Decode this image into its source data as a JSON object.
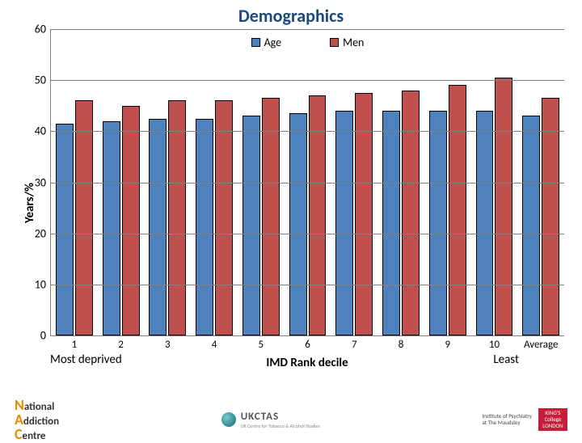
{
  "title": "Demographics",
  "ylabel": "Years/%",
  "xlabel": "IMD Rank decile",
  "sublabel_left": "Most deprived",
  "sublabel_right": "Least",
  "chart": {
    "type": "bar",
    "ylim": [
      0,
      60
    ],
    "ytick_step": 10,
    "yticks": [
      0,
      10,
      20,
      30,
      40,
      50,
      60
    ],
    "grid_color": "#808080",
    "background_color": "#ffffff",
    "categories": [
      "1",
      "2",
      "3",
      "4",
      "5",
      "6",
      "7",
      "8",
      "9",
      "10",
      "Average"
    ],
    "series": [
      {
        "name": "Age",
        "color": "#4f81bd",
        "values": [
          41.5,
          42,
          42.5,
          42.5,
          43,
          43.5,
          44,
          44,
          44,
          44,
          43
        ]
      },
      {
        "name": "Men",
        "color": "#c0504d",
        "values": [
          46,
          45,
          46,
          46,
          46.5,
          47,
          47.5,
          48,
          49,
          50.5,
          46.5
        ]
      }
    ],
    "bar_border": "#000000",
    "label_fontsize": 14,
    "title_fontsize": 22,
    "title_color": "#1f497d"
  },
  "legend": {
    "items": [
      {
        "label": "Age",
        "color": "#4f81bd"
      },
      {
        "label": "Men",
        "color": "#c0504d"
      }
    ]
  },
  "footer": {
    "nac_N": "N",
    "nac_national": "ational",
    "nac_A": "A",
    "nac_addiction": "ddiction",
    "nac_C": "C",
    "nac_centre": "entre",
    "ukctas_name": "UKCTAS",
    "ukctas_sub": "UK Centre for Tobacco & Alcohol Studies",
    "iop_line1": "Institute of Psychiatry",
    "iop_line2": "at The Maudsley",
    "kcl_line1": "KING'S",
    "kcl_line2": "College",
    "kcl_line3": "LONDON"
  }
}
